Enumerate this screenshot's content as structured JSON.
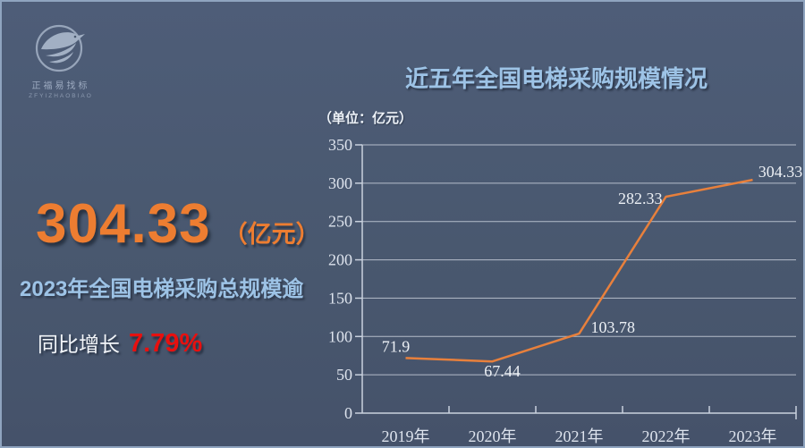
{
  "logo": {
    "name_cn": "正福易找标",
    "name_en": "ZFYIZHAOBIAO"
  },
  "highlight": {
    "value": "304.33",
    "value_unit": "（亿元）",
    "subtitle": "2023年全国电梯采购总规模逾",
    "growth_label": "同比增长",
    "growth_value": "7.79%"
  },
  "chart_data": {
    "type": "line",
    "title": "近五年全国电梯采购规模情况",
    "unit_note": "（单位：亿元）",
    "categories": [
      "2019年",
      "2020年",
      "2021年",
      "2022年",
      "2023年"
    ],
    "values": [
      71.9,
      67.44,
      103.78,
      282.33,
      304.33
    ],
    "labels": [
      "71.9",
      "67.44",
      "103.78",
      "282.33",
      "304.33"
    ],
    "ylim": [
      0,
      350
    ],
    "ytick_step": 50,
    "grid": true,
    "legend": "none",
    "line_color": "#E8803C"
  },
  "colors": {
    "background": "#49586F",
    "border": "#8FA4BF",
    "accent_orange": "#ED7D31",
    "light_blue": "#9DC3E6",
    "red": "#E8100F",
    "gridline": "#DFE5EE",
    "chart_text": "#DDE3ED"
  }
}
